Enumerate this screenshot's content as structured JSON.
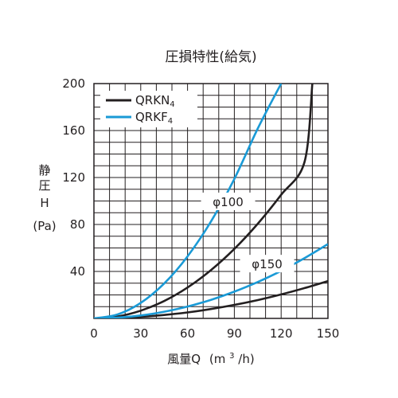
{
  "chart_data": {
    "type": "line",
    "title": "圧損特性(給気)",
    "ylabel_lines": [
      "静",
      "圧",
      "H",
      "(Pa)"
    ],
    "xlabel": "風量Q",
    "xlabel_unit_prefix": "(m",
    "xlabel_unit_sup": "3",
    "xlabel_unit_suffix": "/h)",
    "xlim": [
      0,
      150
    ],
    "ylim": [
      0,
      200
    ],
    "x_ticks": [
      "0",
      "30",
      "60",
      "90",
      "120",
      "150"
    ],
    "y_ticks": [
      "40",
      "80",
      "120",
      "160",
      "200"
    ],
    "x_tick_values": [
      0,
      30,
      60,
      90,
      120,
      150
    ],
    "y_tick_values": [
      40,
      80,
      120,
      160,
      200
    ],
    "grid": true,
    "legend": {
      "placement": "top-left",
      "entries": [
        {
          "name": "QRKN",
          "sub": "4",
          "color": "#231f20"
        },
        {
          "name": "QRKF",
          "sub": "4",
          "color": "#1a9ad6"
        }
      ]
    },
    "annotations": [
      {
        "text": "φ100",
        "x": 86,
        "y": 99
      },
      {
        "text": "φ150",
        "x": 111,
        "y": 46
      }
    ],
    "series": [
      {
        "name": "QRKN4 φ100",
        "legend": "QRKN4",
        "color": "#231f20",
        "x": [
          0,
          15,
          30,
          45,
          60,
          75,
          90,
          105,
          120,
          135,
          140
        ],
        "y": [
          0,
          1.6,
          6.6,
          14.8,
          26.3,
          41.1,
          59.2,
          80.6,
          105.3,
          133.3,
          200
        ]
      },
      {
        "name": "QRKF4 φ100",
        "legend": "QRKF4",
        "color": "#1a9ad6",
        "x": [
          0,
          15,
          30,
          45,
          60,
          75,
          90,
          105,
          120
        ],
        "y": [
          0,
          3.3,
          13.2,
          29.7,
          52.8,
          82.5,
          118.8,
          161.7,
          200
        ]
      },
      {
        "name": "QRKN4 φ150",
        "legend": "QRKN4",
        "color": "#231f20",
        "x": [
          0,
          15,
          30,
          45,
          60,
          75,
          90,
          105,
          120,
          135,
          150
        ],
        "y": [
          0,
          0.3,
          1.3,
          2.9,
          5.1,
          8.0,
          11.5,
          15.6,
          20.4,
          25.8,
          31.8
        ]
      },
      {
        "name": "QRKF4 φ150",
        "legend": "QRKF4",
        "color": "#1a9ad6",
        "x": [
          0,
          15,
          30,
          45,
          60,
          75,
          90,
          105,
          120,
          135,
          150
        ],
        "y": [
          0,
          0.6,
          2.5,
          5.7,
          10.1,
          15.8,
          22.8,
          31.0,
          40.5,
          51.3,
          63.3
        ]
      }
    ]
  }
}
